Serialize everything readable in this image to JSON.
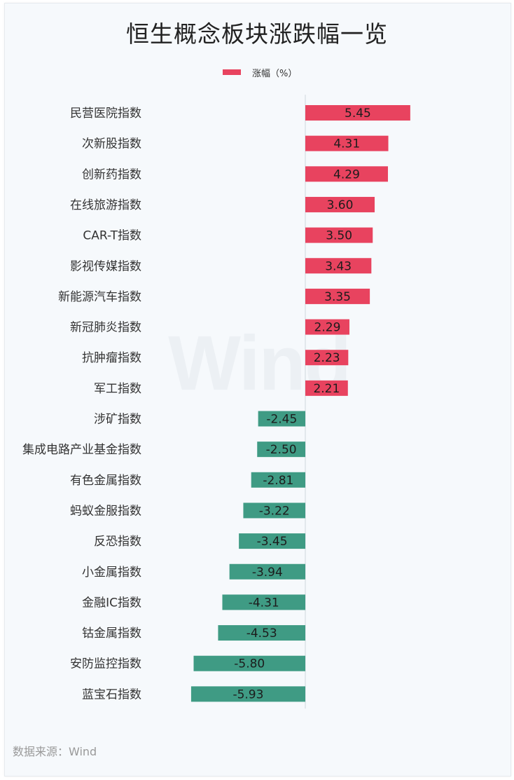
{
  "title": "恒生概念板块涨跌幅一览",
  "source": "数据来源：Wind",
  "watermark": "Wind",
  "colors": {
    "positive": "#e8435f",
    "negative": "#3f9b84",
    "axis": "#cfd6dc"
  },
  "chart_data": {
    "type": "bar",
    "orientation": "horizontal",
    "title": "恒生概念板块涨跌幅一览",
    "legend": {
      "position": "top",
      "entries": [
        "涨幅（%）"
      ]
    },
    "xlim": [
      -6,
      6
    ],
    "grid": false,
    "categories": [
      "民营医院指数",
      "次新股指数",
      "创新药指数",
      "在线旅游指数",
      "CAR-T指数",
      "影视传媒指数",
      "新能源汽车指数",
      "新冠肺炎指数",
      "抗肿瘤指数",
      "军工指数",
      "涉矿指数",
      "集成电路产业基金指数",
      "有色金属指数",
      "蚂蚁金服指数",
      "反恐指数",
      "小金属指数",
      "金融IC指数",
      "钴金属指数",
      "安防监控指数",
      "蓝宝石指数"
    ],
    "series": [
      {
        "name": "涨幅（%）",
        "values": [
          5.45,
          4.31,
          4.29,
          3.6,
          3.5,
          3.43,
          3.35,
          2.29,
          2.23,
          2.21,
          -2.45,
          -2.5,
          -2.81,
          -3.22,
          -3.45,
          -3.94,
          -4.31,
          -4.53,
          -5.8,
          -5.93
        ],
        "labels": [
          "5.45",
          "4.31",
          "4.29",
          "3.60",
          "3.50",
          "3.43",
          "3.35",
          "2.29",
          "2.23",
          "2.21",
          "-2.45",
          "-2.50",
          "-2.81",
          "-3.22",
          "-3.45",
          "-3.94",
          "-4.31",
          "-4.53",
          "-5.80",
          "-5.93"
        ]
      }
    ]
  }
}
